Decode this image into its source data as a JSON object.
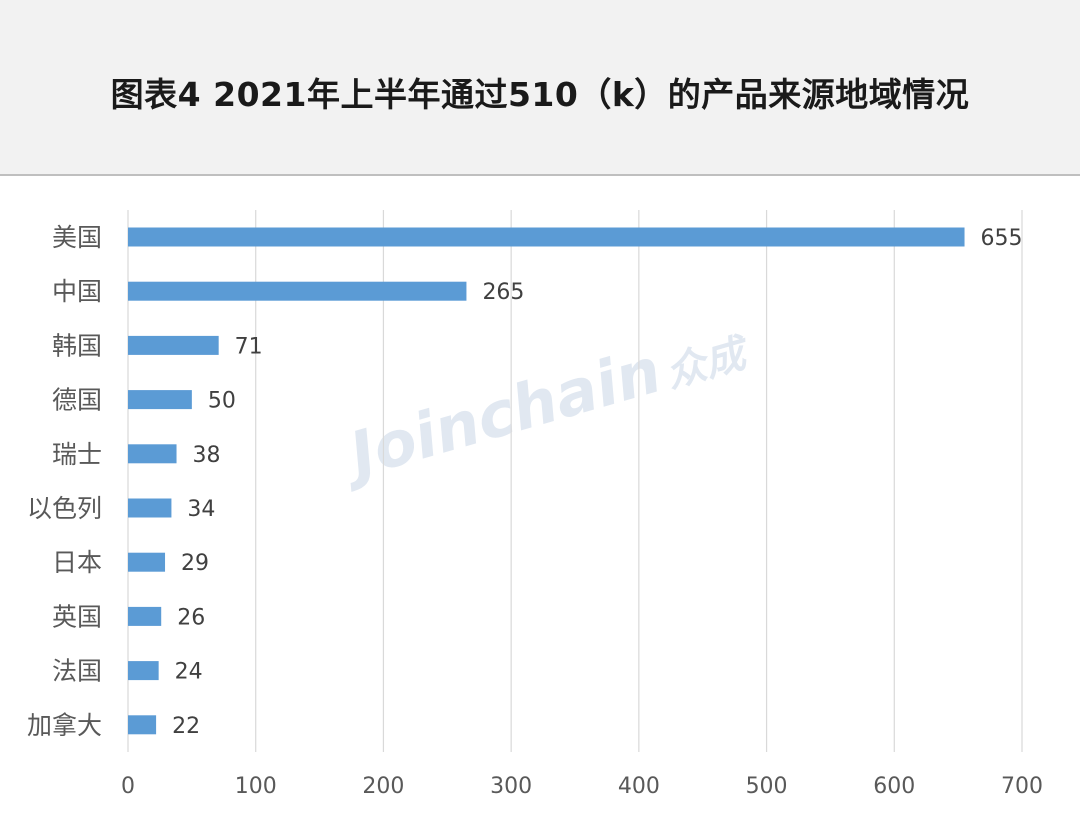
{
  "title": "图表4  2021年上半年通过510（k）的产品来源地域情况",
  "watermark": {
    "latin": "Joinchain",
    "cn": "众成"
  },
  "colors": {
    "bar": "#5b9bd5",
    "grid": "#d9d9d9",
    "axis_text": "#595959",
    "label_text": "#404040"
  },
  "chart_data": {
    "type": "bar",
    "orientation": "horizontal",
    "title": "图表4  2021年上半年通过510（k）的产品来源地域情况",
    "categories": [
      "美国",
      "中国",
      "韩国",
      "德国",
      "瑞士",
      "以色列",
      "日本",
      "英国",
      "法国",
      "加拿大"
    ],
    "values": [
      655,
      265,
      71,
      50,
      38,
      34,
      29,
      26,
      24,
      22
    ],
    "xlim": [
      0,
      700
    ],
    "xticks": [
      0,
      100,
      200,
      300,
      400,
      500,
      600,
      700
    ],
    "grid": "vertical",
    "data_labels": true,
    "legend": "none"
  }
}
